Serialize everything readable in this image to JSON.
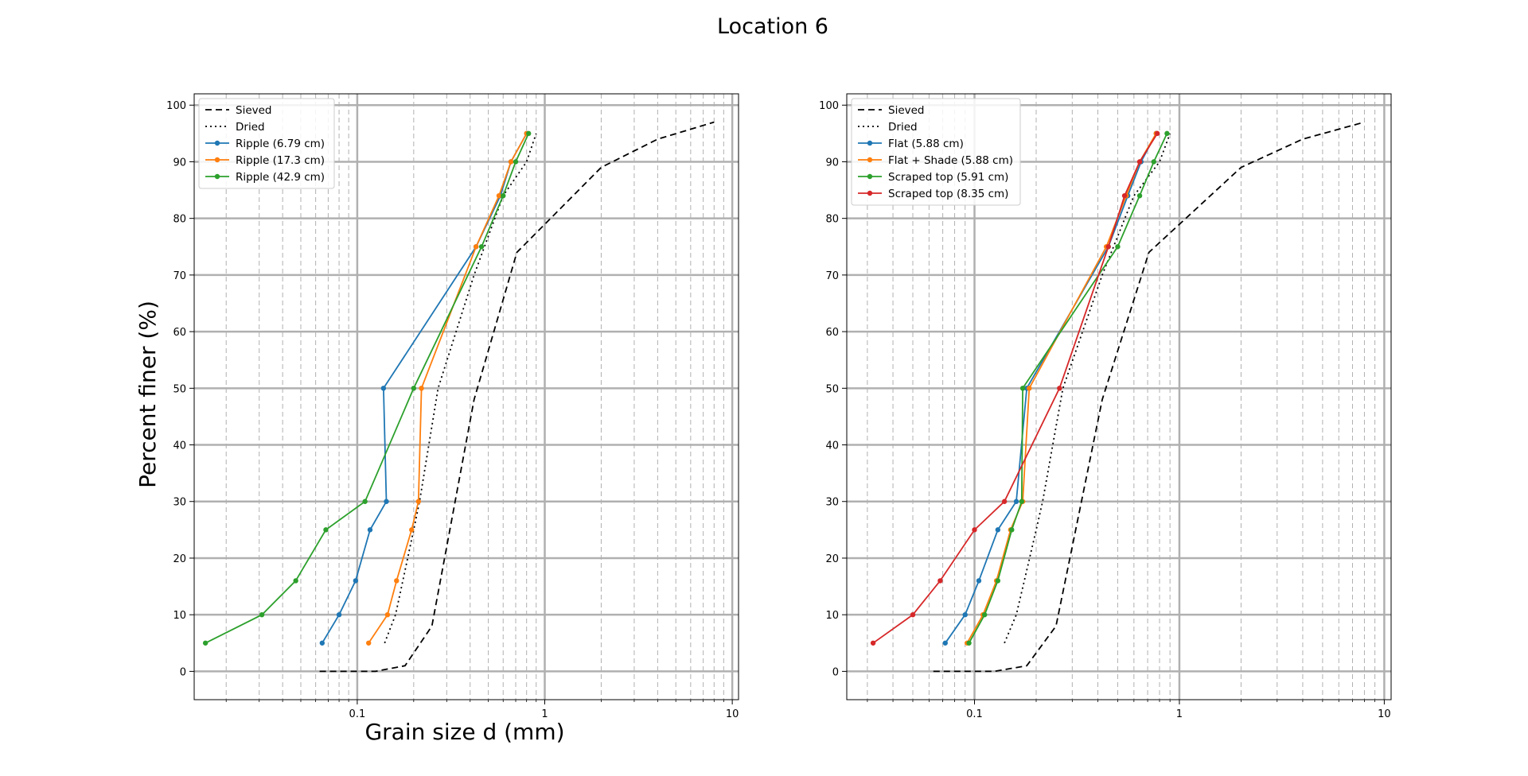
{
  "figure": {
    "suptitle": "Location 6"
  },
  "chart_data": [
    {
      "type": "line",
      "title": "",
      "xlabel": "Grain size d (mm)",
      "ylabel": "Percent finer (%)",
      "xscale": "log",
      "xlim": [
        0.0135,
        10.8
      ],
      "ylim": [
        -5,
        102
      ],
      "x_ticks": [
        0.1,
        1,
        10
      ],
      "x_tick_labels": [
        "0.1",
        "1",
        "10"
      ],
      "y_ticks": [
        0,
        10,
        20,
        30,
        40,
        50,
        60,
        70,
        80,
        90,
        100
      ],
      "grid": true,
      "legend": "upper-left",
      "series": [
        {
          "name": "Sieved",
          "color": "#000000",
          "style": "dashed",
          "markers": false,
          "x": [
            0.063,
            0.125,
            0.18,
            0.25,
            0.3,
            0.42,
            0.71,
            2.0,
            4.0,
            8.0
          ],
          "y": [
            0,
            0,
            1,
            8,
            22,
            48,
            74,
            89,
            94,
            97
          ]
        },
        {
          "name": "Dried",
          "color": "#000000",
          "style": "dotted",
          "markers": false,
          "x": [
            0.14,
            0.16,
            0.175,
            0.2,
            0.215,
            0.27,
            0.42,
            0.6,
            0.8,
            0.9
          ],
          "y": [
            5,
            10,
            16,
            25,
            30,
            50,
            70,
            84,
            90,
            95
          ]
        },
        {
          "name": "Ripple (6.79 cm)",
          "color": "#1f77b4",
          "style": "solid",
          "markers": true,
          "x": [
            0.065,
            0.08,
            0.098,
            0.117,
            0.143,
            0.138,
            0.43,
            0.58,
            0.66,
            0.8
          ],
          "y": [
            5,
            10,
            16,
            25,
            30,
            50,
            75,
            84,
            90,
            95
          ]
        },
        {
          "name": "Ripple (17.3 cm)",
          "color": "#ff7f0e",
          "style": "solid",
          "markers": true,
          "x": [
            0.115,
            0.145,
            0.162,
            0.195,
            0.212,
            0.22,
            0.43,
            0.57,
            0.66,
            0.8
          ],
          "y": [
            5,
            10,
            16,
            25,
            30,
            50,
            75,
            84,
            90,
            95
          ]
        },
        {
          "name": "Ripple (42.9 cm)",
          "color": "#2ca02c",
          "style": "solid",
          "markers": true,
          "x": [
            0.0155,
            0.031,
            0.047,
            0.068,
            0.11,
            0.2,
            0.46,
            0.6,
            0.7,
            0.82
          ],
          "y": [
            5,
            10,
            16,
            25,
            30,
            50,
            75,
            84,
            90,
            95
          ]
        }
      ]
    },
    {
      "type": "line",
      "title": "",
      "xlabel": "",
      "ylabel": "",
      "xscale": "log",
      "xlim": [
        0.0238,
        10.8
      ],
      "ylim": [
        -5,
        102
      ],
      "x_ticks": [
        0.1,
        1,
        10
      ],
      "x_tick_labels": [
        "0.1",
        "1",
        "10"
      ],
      "y_ticks": [
        0,
        10,
        20,
        30,
        40,
        50,
        60,
        70,
        80,
        90,
        100
      ],
      "grid": true,
      "legend": "upper-left",
      "series": [
        {
          "name": "Sieved",
          "color": "#000000",
          "style": "dashed",
          "markers": false,
          "x": [
            0.063,
            0.125,
            0.18,
            0.25,
            0.3,
            0.42,
            0.71,
            2.0,
            4.0,
            8.0
          ],
          "y": [
            0,
            0,
            1,
            8,
            22,
            48,
            74,
            89,
            94,
            97
          ]
        },
        {
          "name": "Dried",
          "color": "#000000",
          "style": "dotted",
          "markers": false,
          "x": [
            0.14,
            0.16,
            0.175,
            0.2,
            0.215,
            0.27,
            0.42,
            0.6,
            0.8,
            0.9
          ],
          "y": [
            5,
            10,
            16,
            25,
            30,
            50,
            70,
            84,
            90,
            95
          ]
        },
        {
          "name": "Flat (5.88 cm)",
          "color": "#1f77b4",
          "style": "solid",
          "markers": true,
          "x": [
            0.072,
            0.09,
            0.105,
            0.13,
            0.16,
            0.18,
            0.45,
            0.56,
            0.65,
            0.77
          ],
          "y": [
            5,
            10,
            16,
            25,
            30,
            50,
            75,
            84,
            90,
            95
          ]
        },
        {
          "name": "Flat + Shade (5.88 cm)",
          "color": "#ff7f0e",
          "style": "solid",
          "markers": true,
          "x": [
            0.092,
            0.11,
            0.128,
            0.15,
            0.172,
            0.185,
            0.44,
            0.55,
            0.64,
            0.77
          ],
          "y": [
            5,
            10,
            16,
            25,
            30,
            50,
            75,
            84,
            90,
            95
          ]
        },
        {
          "name": "Scraped top (5.91 cm)",
          "color": "#2ca02c",
          "style": "solid",
          "markers": true,
          "x": [
            0.094,
            0.112,
            0.13,
            0.152,
            0.17,
            0.172,
            0.5,
            0.64,
            0.75,
            0.87
          ],
          "y": [
            5,
            10,
            16,
            25,
            30,
            50,
            75,
            84,
            90,
            95
          ]
        },
        {
          "name": "Scraped top (8.35 cm)",
          "color": "#d62728",
          "style": "solid",
          "markers": true,
          "x": [
            0.032,
            0.05,
            0.068,
            0.1,
            0.14,
            0.26,
            0.45,
            0.54,
            0.64,
            0.78
          ],
          "y": [
            5,
            10,
            16,
            25,
            30,
            50,
            75,
            84,
            90,
            95
          ]
        }
      ]
    }
  ]
}
